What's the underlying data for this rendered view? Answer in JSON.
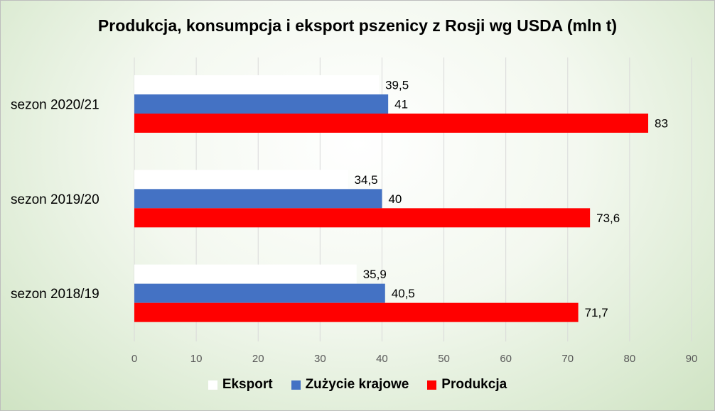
{
  "chart_data": {
    "type": "bar",
    "orientation": "horizontal",
    "title": "Produkcja, konsumpcja i eksport pszenicy z Rosji wg USDA (mln t)",
    "categories": [
      "sezon 2020/21",
      "sezon 2019/20",
      "sezon 2018/19"
    ],
    "series": [
      {
        "name": "Eksport",
        "values": [
          39.5,
          34.5,
          35.9
        ],
        "labels": [
          "39,5",
          "34,5",
          "35,9"
        ],
        "color": "#ffffff"
      },
      {
        "name": "Zużycie krajowe",
        "values": [
          41,
          40,
          40.5
        ],
        "labels": [
          "41",
          "40",
          "40,5"
        ],
        "color": "#4472c4"
      },
      {
        "name": "Produkcja",
        "values": [
          83,
          73.6,
          71.7
        ],
        "labels": [
          "83",
          "73,6",
          "71,7"
        ],
        "color": "#ff0000"
      }
    ],
    "xlim": [
      0,
      90
    ],
    "xticks": [
      0,
      10,
      20,
      30,
      40,
      50,
      60,
      70,
      80,
      90
    ],
    "xtick_labels": [
      "0",
      "10",
      "20",
      "30",
      "40",
      "50",
      "60",
      "70",
      "80",
      "90"
    ],
    "grid": true,
    "legend_position": "bottom"
  }
}
